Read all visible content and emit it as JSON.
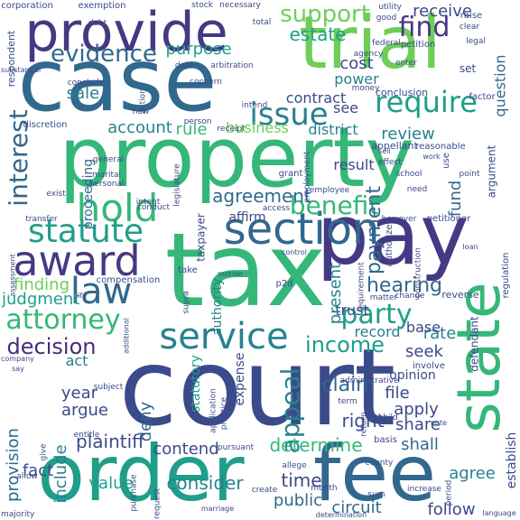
{
  "palette": {
    "background": "#ffffff",
    "navy": "#3b4a8a",
    "indigo": "#443983",
    "purple": "#472c7a",
    "blue": "#31688e",
    "teal": "#26828e",
    "sea": "#1f9e89",
    "mint": "#35b779",
    "green": "#6ece58",
    "lime": "#b5de2b"
  },
  "words": [
    {
      "text": "court",
      "color": "navy"
    },
    {
      "text": "tax",
      "color": "mint"
    },
    {
      "text": "property",
      "color": "mint"
    },
    {
      "text": "case",
      "color": "blue"
    },
    {
      "text": "trial",
      "color": "green"
    },
    {
      "text": "pay",
      "color": "indigo"
    },
    {
      "text": "order",
      "color": "sea"
    },
    {
      "text": "fee",
      "color": "blue"
    },
    {
      "text": "state",
      "color": "mint"
    },
    {
      "text": "provide",
      "color": "indigo"
    },
    {
      "text": "section",
      "color": "blue"
    },
    {
      "text": "service",
      "color": "teal"
    },
    {
      "text": "award",
      "color": "indigo"
    },
    {
      "text": "hold",
      "color": "mint"
    },
    {
      "text": "statute",
      "color": "sea"
    },
    {
      "text": "law",
      "color": "blue"
    },
    {
      "text": "issue",
      "color": "teal"
    },
    {
      "text": "require",
      "color": "sea"
    },
    {
      "text": "benefit",
      "color": "mint"
    },
    {
      "text": "attorney",
      "color": "mint"
    },
    {
      "text": "decision",
      "color": "purple"
    },
    {
      "text": "party",
      "color": "sea"
    },
    {
      "text": "interest",
      "color": "blue"
    },
    {
      "text": "find",
      "color": "indigo"
    },
    {
      "text": "support",
      "color": "green"
    },
    {
      "text": "evidence",
      "color": "blue"
    },
    {
      "text": "appeal",
      "color": "teal"
    },
    {
      "text": "income",
      "color": "sea"
    },
    {
      "text": "payment",
      "color": "blue"
    },
    {
      "text": "agreement",
      "color": "blue"
    },
    {
      "text": "hearing",
      "color": "blue"
    },
    {
      "text": "claim",
      "color": "blue"
    },
    {
      "text": "determine",
      "color": "mint"
    },
    {
      "text": "receive",
      "color": "navy"
    },
    {
      "text": "estate",
      "color": "sea"
    },
    {
      "text": "purpose",
      "color": "sea"
    },
    {
      "text": "cost",
      "color": "navy"
    },
    {
      "text": "power",
      "color": "teal"
    },
    {
      "text": "contract",
      "color": "navy"
    },
    {
      "text": "account",
      "color": "teal"
    },
    {
      "text": "rule",
      "color": "mint"
    },
    {
      "text": "business",
      "color": "green"
    },
    {
      "text": "district",
      "color": "teal"
    },
    {
      "text": "review",
      "color": "teal"
    },
    {
      "text": "sale",
      "color": "teal"
    },
    {
      "text": "see",
      "color": "navy"
    },
    {
      "text": "result",
      "color": "navy"
    },
    {
      "text": "fund",
      "color": "blue"
    },
    {
      "text": "trust",
      "color": "navy"
    },
    {
      "text": "present",
      "color": "teal"
    },
    {
      "text": "finding",
      "color": "green"
    },
    {
      "text": "judgment",
      "color": "sea"
    },
    {
      "text": "record",
      "color": "teal"
    },
    {
      "text": "rate",
      "color": "teal"
    },
    {
      "text": "base",
      "color": "navy"
    },
    {
      "text": "seek",
      "color": "navy"
    },
    {
      "text": "year",
      "color": "navy"
    },
    {
      "text": "file",
      "color": "navy"
    },
    {
      "text": "apply",
      "color": "navy"
    },
    {
      "text": "share",
      "color": "navy"
    },
    {
      "text": "right",
      "color": "navy"
    },
    {
      "text": "argue",
      "color": "navy"
    },
    {
      "text": "act",
      "color": "teal"
    },
    {
      "text": "deny",
      "color": "blue"
    },
    {
      "text": "plaintiff",
      "color": "navy"
    },
    {
      "text": "contend",
      "color": "navy"
    },
    {
      "text": "provision",
      "color": "blue"
    },
    {
      "text": "fact",
      "color": "navy"
    },
    {
      "text": "include",
      "color": "teal"
    },
    {
      "text": "value",
      "color": "sea"
    },
    {
      "text": "consider",
      "color": "teal"
    },
    {
      "text": "time",
      "color": "navy"
    },
    {
      "text": "public",
      "color": "blue"
    },
    {
      "text": "circuit",
      "color": "blue"
    },
    {
      "text": "shall",
      "color": "blue"
    },
    {
      "text": "follow",
      "color": "navy"
    },
    {
      "text": "agree",
      "color": "teal"
    },
    {
      "text": "establish",
      "color": "navy"
    },
    {
      "text": "opinion",
      "color": "navy"
    },
    {
      "text": "affirm",
      "color": "navy"
    },
    {
      "text": "expense",
      "color": "navy"
    },
    {
      "text": "statutory",
      "color": "sea"
    },
    {
      "text": "authority",
      "color": "teal"
    },
    {
      "text": "proceeding",
      "color": "blue"
    },
    {
      "text": "question",
      "color": "blue"
    },
    {
      "text": "defendant",
      "color": "navy"
    },
    {
      "text": "taxpayer",
      "color": "navy"
    },
    {
      "text": "compensation",
      "color": "navy"
    },
    {
      "text": "respondent",
      "color": "navy"
    },
    {
      "text": "corporation",
      "color": "navy"
    },
    {
      "text": "exemption",
      "color": "navy"
    },
    {
      "text": "stock",
      "color": "navy"
    },
    {
      "text": "necessary",
      "color": "navy"
    },
    {
      "text": "utility",
      "color": "navy"
    },
    {
      "text": "good",
      "color": "navy"
    },
    {
      "text": "federal",
      "color": "navy"
    },
    {
      "text": "agency",
      "color": "navy"
    },
    {
      "text": "petition",
      "color": "navy"
    },
    {
      "text": "enter",
      "color": "navy"
    },
    {
      "text": "set",
      "color": "navy"
    },
    {
      "text": "raise",
      "color": "navy"
    },
    {
      "text": "clear",
      "color": "navy"
    },
    {
      "text": "legal",
      "color": "navy"
    },
    {
      "text": "debt",
      "color": "navy"
    },
    {
      "text": "total",
      "color": "navy"
    },
    {
      "text": "date",
      "color": "navy"
    },
    {
      "text": "arbitration",
      "color": "navy"
    },
    {
      "text": "money",
      "color": "navy"
    },
    {
      "text": "conclusion",
      "color": "navy"
    },
    {
      "text": "factor",
      "color": "navy"
    },
    {
      "text": "appellant",
      "color": "navy"
    },
    {
      "text": "reasonable",
      "color": "navy"
    },
    {
      "text": "work",
      "color": "navy"
    },
    {
      "text": "conclude",
      "color": "navy"
    },
    {
      "text": "action",
      "color": "navy"
    },
    {
      "text": "new",
      "color": "navy"
    },
    {
      "text": "concern",
      "color": "navy"
    },
    {
      "text": "person",
      "color": "navy"
    },
    {
      "text": "receipt",
      "color": "navy"
    },
    {
      "text": "intend",
      "color": "navy"
    },
    {
      "text": "discretion",
      "color": "navy"
    },
    {
      "text": "general",
      "color": "navy"
    },
    {
      "text": "marital",
      "color": "navy"
    },
    {
      "text": "personal",
      "color": "navy"
    },
    {
      "text": "exist",
      "color": "navy"
    },
    {
      "text": "legislature",
      "color": "navy"
    },
    {
      "text": "employment",
      "color": "navy"
    },
    {
      "text": "grant",
      "color": "navy"
    },
    {
      "text": "sell",
      "color": "navy"
    },
    {
      "text": "effect",
      "color": "navy"
    },
    {
      "text": "school",
      "color": "navy"
    },
    {
      "text": "employee",
      "color": "navy"
    },
    {
      "text": "point",
      "color": "navy"
    },
    {
      "text": "need",
      "color": "navy"
    },
    {
      "text": "use",
      "color": "navy"
    },
    {
      "text": "argument",
      "color": "navy"
    },
    {
      "text": "access",
      "color": "navy"
    },
    {
      "text": "however",
      "color": "navy"
    },
    {
      "text": "petitioner",
      "color": "navy"
    },
    {
      "text": "transfer",
      "color": "navy"
    },
    {
      "text": "conduct",
      "color": "navy"
    },
    {
      "text": "intent",
      "color": "navy"
    },
    {
      "text": "control",
      "color": "navy"
    },
    {
      "text": "assessment",
      "color": "navy"
    },
    {
      "text": "authorize",
      "color": "navy"
    },
    {
      "text": "construction",
      "color": "navy"
    },
    {
      "text": "regulation",
      "color": "navy"
    },
    {
      "text": "take",
      "color": "navy"
    },
    {
      "text": "motion",
      "color": "navy"
    },
    {
      "text": "p2d",
      "color": "navy"
    },
    {
      "text": "requirement",
      "color": "navy"
    },
    {
      "text": "change",
      "color": "navy"
    },
    {
      "text": "reverse",
      "color": "navy"
    },
    {
      "text": "matter",
      "color": "navy"
    },
    {
      "text": "supra",
      "color": "navy"
    },
    {
      "text": "additional",
      "color": "navy"
    },
    {
      "text": "life",
      "color": "navy"
    },
    {
      "text": "company",
      "color": "navy"
    },
    {
      "text": "say",
      "color": "navy"
    },
    {
      "text": "involve",
      "color": "navy"
    },
    {
      "text": "subject",
      "color": "navy"
    },
    {
      "text": "application",
      "color": "navy"
    },
    {
      "text": "practice",
      "color": "navy"
    },
    {
      "text": "administrative",
      "color": "navy"
    },
    {
      "text": "term",
      "color": "navy"
    },
    {
      "text": "return",
      "color": "navy"
    },
    {
      "text": "child",
      "color": "navy"
    },
    {
      "text": "note",
      "color": "navy"
    },
    {
      "text": "basis",
      "color": "navy"
    },
    {
      "text": "entitle",
      "color": "navy"
    },
    {
      "text": "give",
      "color": "navy"
    },
    {
      "text": "allow",
      "color": "navy"
    },
    {
      "text": "majority",
      "color": "navy"
    },
    {
      "text": "purchase",
      "color": "navy"
    },
    {
      "text": "request",
      "color": "navy"
    },
    {
      "text": "pursuant",
      "color": "navy"
    },
    {
      "text": "allege",
      "color": "navy"
    },
    {
      "text": "county",
      "color": "navy"
    },
    {
      "text": "create",
      "color": "navy"
    },
    {
      "text": "marriage",
      "color": "navy"
    },
    {
      "text": "month",
      "color": "navy"
    },
    {
      "text": "determination",
      "color": "navy"
    },
    {
      "text": "sum",
      "color": "navy"
    },
    {
      "text": "increase",
      "color": "navy"
    },
    {
      "text": "language",
      "color": "navy"
    },
    {
      "text": "period",
      "color": "navy"
    },
    {
      "text": "substantial",
      "color": "navy"
    },
    {
      "text": "loan",
      "color": "navy"
    }
  ]
}
